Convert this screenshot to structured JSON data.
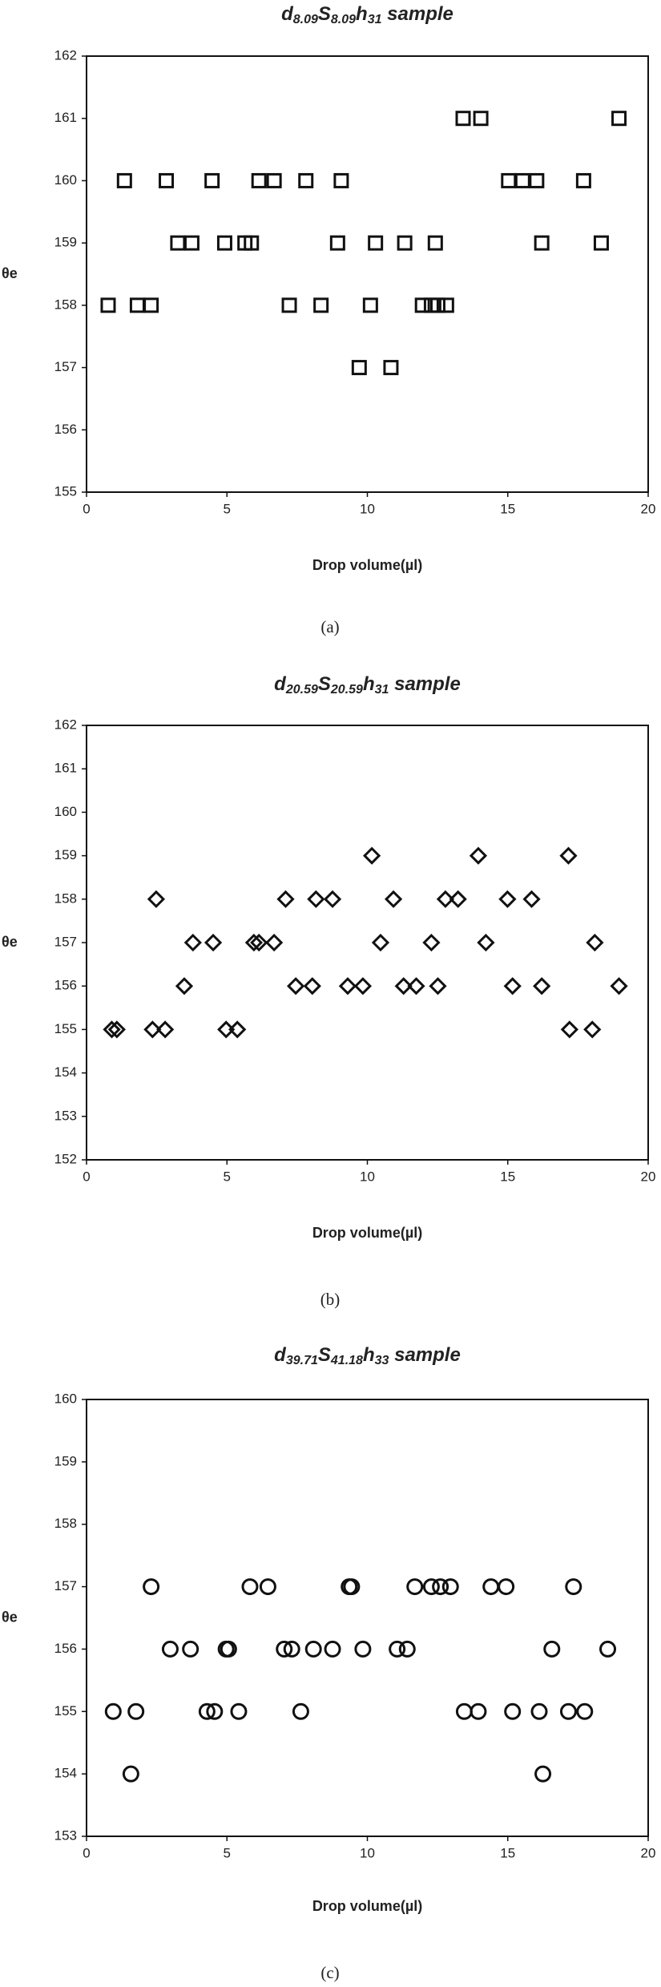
{
  "chart_data": [
    {
      "type": "scatter",
      "marker": "square",
      "color": "#111111",
      "title": [
        {
          "text": "d"
        },
        {
          "text": "8.09",
          "sub": true
        },
        {
          "text": "S"
        },
        {
          "text": "8.09",
          "sub": true
        },
        {
          "text": "h"
        },
        {
          "text": "31",
          "sub": true
        },
        {
          "text": " sample"
        }
      ],
      "x_label": "Drop volume(µl)",
      "y_label": "θe",
      "caption": "(a)",
      "xlim": [
        0,
        20
      ],
      "xticks": [
        0,
        5,
        10,
        15,
        20
      ],
      "ylim": [
        155,
        162
      ],
      "yticks": [
        155,
        156,
        157,
        158,
        159,
        160,
        161,
        162
      ],
      "x": [
        0.77,
        1.81,
        2.3,
        7.22,
        8.35,
        10.11,
        11.96,
        12.28,
        12.51,
        12.82,
        1.35,
        2.84,
        4.47,
        6.14,
        6.68,
        7.81,
        9.07,
        15.03,
        15.53,
        16.03,
        17.7,
        3.25,
        3.75,
        4.92,
        5.64,
        5.87,
        8.94,
        10.29,
        11.33,
        12.42,
        16.21,
        18.33,
        13.41,
        14.04,
        18.96,
        9.71,
        10.84
      ],
      "y": [
        158,
        158,
        158,
        158,
        158,
        158,
        158,
        158,
        158,
        158,
        160,
        160,
        160,
        160,
        160,
        160,
        160,
        160,
        160,
        160,
        160,
        159,
        159,
        159,
        159,
        159,
        159,
        159,
        159,
        159,
        159,
        159,
        161,
        161,
        161,
        157,
        157
      ]
    },
    {
      "type": "scatter",
      "marker": "diamond",
      "color": "#111111",
      "title": [
        {
          "text": "d"
        },
        {
          "text": "20.59",
          "sub": true
        },
        {
          "text": "S"
        },
        {
          "text": "20.59",
          "sub": true
        },
        {
          "text": "h"
        },
        {
          "text": "31",
          "sub": true
        },
        {
          "text": " sample"
        }
      ],
      "x_label": "Drop volume(µl)",
      "y_label": "θe",
      "caption": "(b)",
      "xlim": [
        0,
        20
      ],
      "xticks": [
        0,
        5,
        10,
        15,
        20
      ],
      "ylim": [
        152,
        162
      ],
      "yticks": [
        152,
        153,
        154,
        155,
        156,
        157,
        158,
        159,
        160,
        161,
        162
      ],
      "x": [
        0.9,
        1.08,
        2.35,
        2.8,
        4.97,
        5.37,
        17.2,
        18.01,
        3.48,
        7.45,
        8.04,
        9.3,
        9.84,
        11.29,
        11.74,
        12.51,
        15.17,
        16.21,
        18.96,
        3.79,
        4.51,
        5.96,
        6.14,
        6.68,
        10.47,
        12.28,
        14.22,
        18.1,
        2.48,
        7.09,
        8.17,
        8.76,
        10.93,
        12.78,
        13.23,
        14.99,
        15.85,
        10.16,
        13.95,
        17.16
      ],
      "y": [
        155,
        155,
        155,
        155,
        155,
        155,
        155,
        155,
        156,
        156,
        156,
        156,
        156,
        156,
        156,
        156,
        156,
        156,
        156,
        157,
        157,
        157,
        157,
        157,
        157,
        157,
        157,
        157,
        158,
        158,
        158,
        158,
        158,
        158,
        158,
        158,
        158,
        159,
        159,
        159
      ]
    },
    {
      "type": "scatter",
      "marker": "circle",
      "color": "#111111",
      "title": [
        {
          "text": "d"
        },
        {
          "text": "39.71",
          "sub": true
        },
        {
          "text": "S"
        },
        {
          "text": "41.18",
          "sub": true
        },
        {
          "text": "h"
        },
        {
          "text": "33",
          "sub": true
        },
        {
          "text": " sample"
        }
      ],
      "x_label": "Drop volume(µl)",
      "y_label": "θe",
      "caption": "(c)",
      "xlim": [
        0,
        20
      ],
      "xticks": [
        0,
        5,
        10,
        15,
        20
      ],
      "ylim": [
        153,
        160
      ],
      "yticks": [
        153,
        154,
        155,
        156,
        157,
        158,
        159,
        160
      ],
      "x": [
        2.3,
        5.82,
        6.46,
        9.35,
        9.44,
        11.69,
        12.28,
        12.6,
        12.96,
        14.4,
        14.94,
        17.34,
        2.98,
        3.7,
        4.97,
        5.06,
        7.04,
        7.31,
        8.08,
        8.76,
        9.84,
        11.06,
        11.42,
        16.57,
        18.56,
        0.95,
        1.76,
        4.29,
        4.56,
        5.42,
        7.63,
        13.45,
        13.95,
        15.17,
        16.12,
        17.16,
        17.74,
        1.58,
        16.25
      ],
      "y": [
        157,
        157,
        157,
        157,
        157,
        157,
        157,
        157,
        157,
        157,
        157,
        157,
        156,
        156,
        156,
        156,
        156,
        156,
        156,
        156,
        156,
        156,
        156,
        156,
        156,
        155,
        155,
        155,
        155,
        155,
        155,
        155,
        155,
        155,
        155,
        155,
        155,
        154,
        154
      ]
    }
  ]
}
